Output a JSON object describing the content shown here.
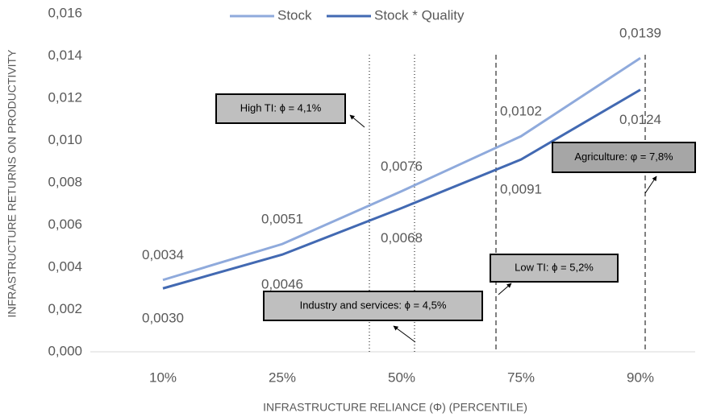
{
  "chart_data": {
    "type": "line",
    "y_axis_label": "INFRASTRUCTURE RETURNS ON PRODUCTIVITY",
    "x_axis_label": "INFRASTRUCTURE RELIANCE (Φ) (PERCENTILE)",
    "categories": [
      "10%",
      "25%",
      "50%",
      "75%",
      "90%"
    ],
    "series": [
      {
        "name": "Stock",
        "color": "#8faadc",
        "values": [
          0.0034,
          0.0051,
          0.0076,
          0.0102,
          0.0139
        ],
        "value_labels": [
          "0,0034",
          "0,0051",
          "0,0076",
          "0,0102",
          "0,0139"
        ]
      },
      {
        "name": "Stock * Quality",
        "color": "#4269b2",
        "values": [
          0.003,
          0.0046,
          0.0068,
          0.0091,
          0.0124
        ],
        "value_labels": [
          "0,0030",
          "0,0046",
          "0,0068",
          "0,0091",
          "0,0124"
        ]
      }
    ],
    "ylim": [
      0,
      0.016
    ],
    "yticks": [
      {
        "value": 0,
        "label": "0,000"
      },
      {
        "value": 0.002,
        "label": "0,002"
      },
      {
        "value": 0.004,
        "label": "0,004"
      },
      {
        "value": 0.006,
        "label": "0,006"
      },
      {
        "value": 0.008,
        "label": "0,008"
      },
      {
        "value": 0.01,
        "label": "0,010"
      },
      {
        "value": 0.012,
        "label": "0,012"
      },
      {
        "value": 0.014,
        "label": "0,014"
      },
      {
        "value": 0.016,
        "label": "0,016"
      }
    ],
    "legend": "top",
    "annotations": [
      "High TI: ϕ = 4,1%",
      "Industry and services: ϕ = 4,5%",
      "Low TI: ϕ = 5,2%",
      "Agriculture: φ = 7,8%"
    ]
  }
}
